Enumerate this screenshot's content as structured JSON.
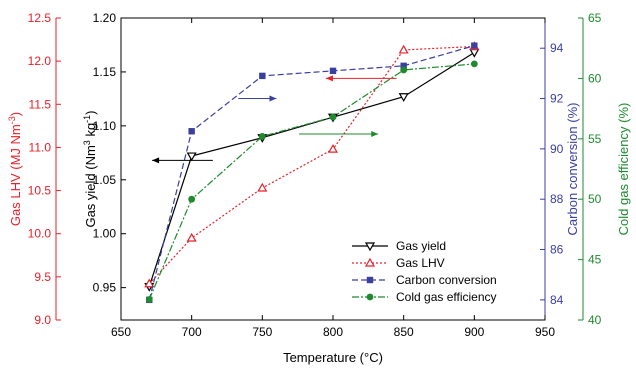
{
  "chart_data": {
    "type": "line",
    "xlabel": "Temperature (°C)",
    "xlim": [
      650,
      950
    ],
    "xticks": [
      650,
      700,
      750,
      800,
      850,
      900,
      950
    ],
    "x": [
      670,
      700,
      750,
      800,
      850,
      900
    ],
    "axes": {
      "gas_yield": {
        "label_pre": "Gas yield (Nm",
        "label_sup1": "3",
        "label_mid": " kg",
        "label_sup2": "-1",
        "label_post": ")",
        "lim": [
          0.92,
          1.2
        ],
        "ticks": [
          "0.95",
          "1.00",
          "1.05",
          "1.10",
          "1.15",
          "1.20"
        ],
        "color": "#000000"
      },
      "lhv": {
        "label_pre": "Gas LHV (MJ Nm",
        "label_sup": "-3",
        "label_post": ")",
        "lim": [
          9.0,
          12.5
        ],
        "ticks": [
          "9.0",
          "9.5",
          "10.0",
          "10.5",
          "11.0",
          "11.5",
          "12.0",
          "12.5"
        ],
        "color": "#e8202a"
      },
      "carbon": {
        "label": "Carbon conversion (%)",
        "lim": [
          83.2,
          95.2
        ],
        "ticks": [
          "84",
          "86",
          "88",
          "90",
          "92",
          "94"
        ],
        "color": "#3a3fa0"
      },
      "cge": {
        "label": "Cold gas efficiency (%)",
        "lim": [
          40,
          65
        ],
        "ticks": [
          "40",
          "45",
          "50",
          "55",
          "60",
          "65"
        ],
        "color": "#1f8a2e"
      }
    },
    "series": [
      {
        "name": "Gas yield",
        "axis": "gas_yield",
        "color": "#000000",
        "dash": "",
        "marker": "triangle-down-open",
        "values": [
          0.951,
          1.072,
          1.089,
          1.108,
          1.127,
          1.168
        ]
      },
      {
        "name": "Gas LHV",
        "axis": "lhv",
        "color": "#e8202a",
        "dash": "2,2",
        "marker": "triangle-up-open",
        "values": [
          9.42,
          9.95,
          10.53,
          10.98,
          12.13,
          12.17
        ]
      },
      {
        "name": "Carbon conversion",
        "axis": "carbon",
        "color": "#3a3fa0",
        "dash": "6,3",
        "marker": "square-filled",
        "values": [
          84.0,
          90.7,
          92.9,
          93.1,
          93.3,
          94.1
        ]
      },
      {
        "name": "Cold gas efficiency",
        "axis": "cge",
        "color": "#1f8a2e",
        "dash": "7,2,2,2",
        "marker": "circle-filled",
        "values": [
          41.7,
          50.0,
          55.2,
          56.8,
          60.7,
          61.2
        ]
      }
    ],
    "legend": "bottom-right",
    "annotation_arrows": "each series points to its own axis"
  }
}
